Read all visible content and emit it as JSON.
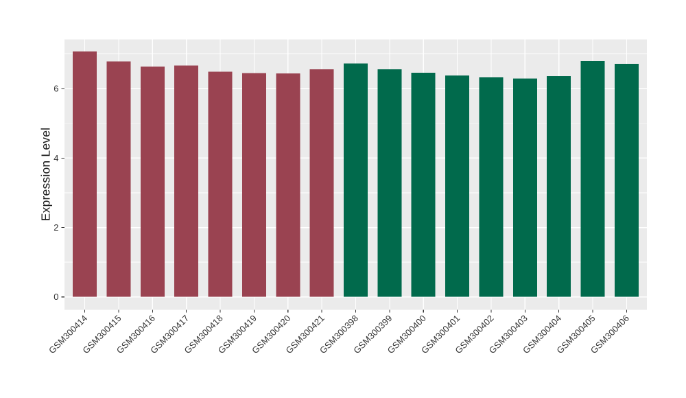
{
  "chart_data": {
    "type": "bar",
    "title": "",
    "xlabel": "",
    "ylabel": "Expression Level",
    "categories": [
      "GSM300414",
      "GSM300415",
      "GSM300416",
      "GSM300417",
      "GSM300418",
      "GSM300419",
      "GSM300420",
      "GSM300421",
      "GSM300398",
      "GSM300399",
      "GSM300400",
      "GSM300401",
      "GSM300402",
      "GSM300403",
      "GSM300404",
      "GSM300405",
      "GSM300406"
    ],
    "values": [
      7.07,
      6.78,
      6.63,
      6.66,
      6.49,
      6.45,
      6.44,
      6.56,
      6.72,
      6.56,
      6.46,
      6.38,
      6.33,
      6.29,
      6.36,
      6.79,
      6.71
    ],
    "bar_groups": [
      0,
      0,
      0,
      0,
      0,
      0,
      0,
      0,
      1,
      1,
      1,
      1,
      1,
      1,
      1,
      1,
      1
    ],
    "group_colors": [
      "#9A4351",
      "#016A4C"
    ],
    "yticks": [
      0,
      2,
      4,
      6
    ],
    "ytick_labels": [
      "0",
      "2",
      "4",
      "6"
    ],
    "minor_yticks": [
      1,
      3,
      5,
      7
    ],
    "ylim": [
      -0.37,
      7.42
    ],
    "x_tick_rotation_deg": 45,
    "legend": "none",
    "grid": "white major and minor horizontal lines plus white vertical lines at each category on grey panel"
  },
  "style": {
    "page_background": "#FFFFFF",
    "panel_background": "#EBEBEB",
    "grid_color": "#FFFFFF",
    "axis_text_color": "#333333",
    "axis_title_color": "#1A1A1A",
    "tick_mark_color": "#333333"
  }
}
